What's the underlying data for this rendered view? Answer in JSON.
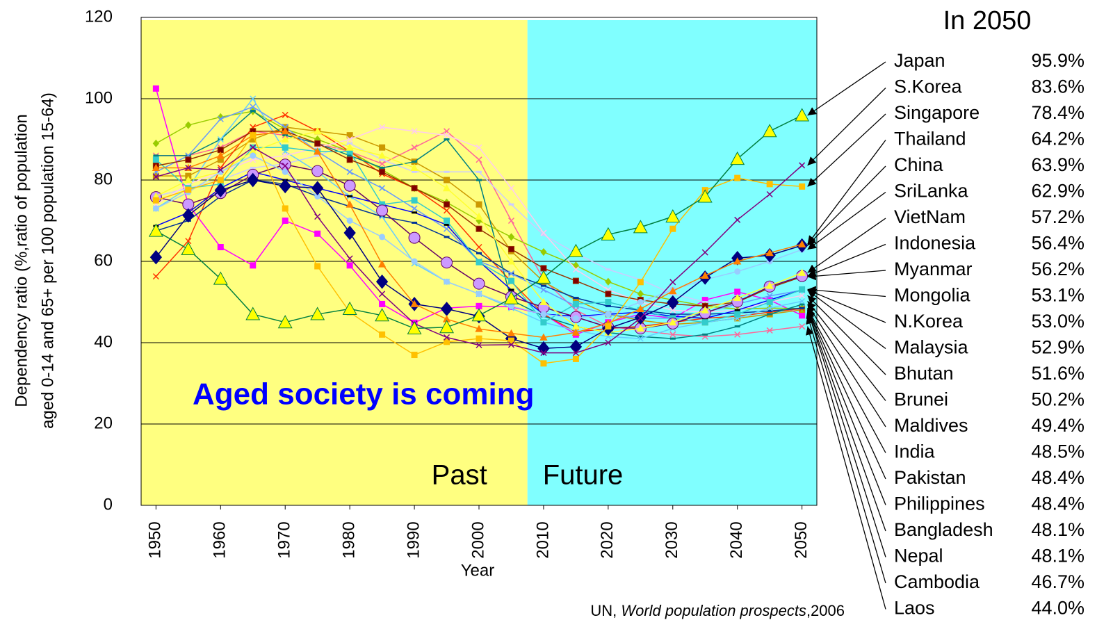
{
  "chart_data": {
    "type": "line",
    "ylabel": [
      "Dependency ratio (%,ratio of population",
      "aged 0-14 and 65+ per 100 population 15-64)"
    ],
    "xlabel": "Year",
    "annotation": "Aged society is coming",
    "legend_title": "In 2050",
    "source": {
      "prefix": "UN, ",
      "title": "World population prospects",
      "suffix": ",2006"
    },
    "split_year": 2007.5,
    "regions": [
      {
        "label": "Past",
        "color": "#ffff80"
      },
      {
        "label": "Future",
        "color": "#80ffff"
      }
    ],
    "grid": true,
    "xlim": [
      1947.7,
      2052.3
    ],
    "xticks": [
      1950,
      1960,
      1970,
      1980,
      1990,
      2000,
      2010,
      2020,
      2030,
      2040,
      2050
    ],
    "ylim": [
      0,
      120
    ],
    "yticks": [
      0,
      20,
      40,
      60,
      80,
      100,
      120
    ],
    "x": [
      1950,
      1955,
      1960,
      1965,
      1970,
      1975,
      1980,
      1985,
      1990,
      1995,
      2000,
      2005,
      2010,
      2015,
      2020,
      2025,
      2030,
      2035,
      2040,
      2045,
      2050
    ],
    "series": [
      {
        "name": "Japan",
        "color": "#008040",
        "marker": "triangle",
        "marker_color": "#ffff00",
        "values": [
          67.5,
          63,
          55.7,
          47,
          45,
          47,
          48.3,
          46.7,
          43.5,
          43.8,
          46.7,
          50.9,
          56,
          62.5,
          66.6,
          68.4,
          71,
          75.9,
          85.2,
          92,
          95.9
        ],
        "value_labels": [
          null,
          null,
          null,
          null,
          null,
          null,
          null,
          null,
          null,
          null,
          null,
          null,
          null,
          null,
          null,
          null,
          null,
          null,
          null,
          null,
          "95.9%"
        ]
      },
      {
        "name": "S.Korea",
        "color": "#800080",
        "marker": "x",
        "marker_color": "#800080",
        "values": [
          80.8,
          83,
          82.5,
          88,
          83.5,
          71,
          60.7,
          52,
          44.7,
          41.3,
          39.4,
          39.5,
          37.5,
          37.5,
          40,
          46,
          54.9,
          62.2,
          70.2,
          76.5,
          83.6
        ],
        "value_labels": [
          null,
          null,
          null,
          null,
          null,
          null,
          null,
          null,
          null,
          null,
          null,
          null,
          null,
          null,
          null,
          null,
          null,
          null,
          null,
          null,
          "83.6%"
        ]
      },
      {
        "name": "Singapore",
        "color": "#ffc000",
        "marker": "square",
        "marker_color": "#ffc000",
        "values": [
          75,
          77.6,
          80,
          91,
          73,
          58.8,
          47.5,
          42,
          37,
          40.2,
          41,
          40.5,
          34.9,
          36,
          44,
          54.9,
          68,
          77.5,
          80.5,
          79,
          78.4
        ],
        "value_labels": [
          null,
          null,
          null,
          null,
          null,
          null,
          null,
          null,
          null,
          null,
          null,
          null,
          null,
          null,
          null,
          null,
          null,
          null,
          null,
          null,
          "78.4%"
        ]
      },
      {
        "name": "Thailand",
        "color": "#ff8000",
        "marker": "triangle",
        "marker_color": "#ff8000",
        "values": [
          83,
          83,
          86,
          91,
          92,
          87,
          74,
          59.3,
          49.5,
          45.8,
          43.4,
          42.3,
          41.3,
          42.5,
          44.8,
          48.3,
          52.7,
          56.5,
          60,
          62.1,
          64.2
        ],
        "value_labels": [
          null,
          null,
          null,
          null,
          null,
          null,
          null,
          null,
          null,
          null,
          null,
          null,
          null,
          null,
          null,
          null,
          null,
          null,
          null,
          null,
          "64.2%"
        ]
      },
      {
        "name": "China",
        "color": "#000080",
        "marker": "diamond",
        "marker_color": "#000080",
        "values": [
          61,
          71.3,
          77.5,
          80,
          78.5,
          78,
          67,
          55,
          49.5,
          48.3,
          46.5,
          41,
          38.6,
          39,
          43.5,
          46.2,
          49.9,
          56,
          60.8,
          61.5,
          63.9
        ],
        "value_labels": [
          null,
          null,
          null,
          null,
          null,
          null,
          null,
          null,
          null,
          null,
          null,
          null,
          null,
          null,
          null,
          null,
          null,
          null,
          null,
          null,
          "63.9%"
        ]
      },
      {
        "name": "SriLanka",
        "color": "#99ccff",
        "marker": "circle",
        "marker_color": "#99ccff",
        "values": [
          73,
          77,
          82,
          86,
          82,
          76,
          70,
          66,
          60,
          55,
          52,
          49,
          47,
          46,
          47,
          50,
          53,
          55.5,
          57.5,
          60,
          62.9
        ],
        "value_labels": [
          null,
          null,
          null,
          null,
          null,
          null,
          null,
          null,
          null,
          null,
          null,
          null,
          null,
          null,
          null,
          null,
          null,
          null,
          null,
          null,
          "62.9%"
        ]
      },
      {
        "name": "VietNam",
        "color": "#ffff33",
        "marker": "triangle",
        "marker_color": "#ffff33",
        "values": [
          76,
          80,
          82,
          87,
          90,
          92,
          88,
          86,
          83,
          78,
          71,
          60,
          50,
          44,
          42.5,
          43.5,
          45,
          48,
          51,
          54,
          57.2
        ],
        "value_labels": [
          null,
          null,
          null,
          null,
          null,
          null,
          null,
          null,
          null,
          null,
          null,
          null,
          null,
          null,
          null,
          null,
          null,
          null,
          null,
          null,
          "57.2%"
        ]
      },
      {
        "name": "Indonesia",
        "color": "#660066",
        "marker": "circle",
        "marker_color": "#cc99ff",
        "values": [
          75.8,
          74,
          76.8,
          81.3,
          83.8,
          82.2,
          78.6,
          72.5,
          65.8,
          59.7,
          54.5,
          51.3,
          48.7,
          46.3,
          43.8,
          43.5,
          44.7,
          47.3,
          50.1,
          53.8,
          56.4
        ],
        "value_labels": [
          null,
          null,
          null,
          null,
          null,
          null,
          null,
          null,
          null,
          null,
          null,
          null,
          null,
          null,
          null,
          null,
          null,
          null,
          null,
          null,
          "56.4%"
        ]
      },
      {
        "name": "Myanmar",
        "color": "#993300",
        "marker": "square",
        "marker_color": "#800000",
        "values": [
          83.5,
          85,
          87.4,
          92,
          92,
          89,
          85,
          82,
          78,
          74,
          68,
          63,
          58.3,
          55.2,
          52,
          50.5,
          49.5,
          49,
          50,
          53.5,
          56.2
        ],
        "value_labels": [
          null,
          null,
          null,
          null,
          null,
          null,
          null,
          null,
          null,
          null,
          null,
          null,
          null,
          null,
          null,
          null,
          null,
          null,
          null,
          null,
          "56.2%"
        ]
      },
      {
        "name": "Mongolia",
        "color": "#33cccc",
        "marker": "square",
        "marker_color": "#33cccc",
        "values": [
          85,
          78,
          79,
          88,
          88,
          87,
          87,
          74,
          75,
          70,
          59.8,
          55.2,
          45,
          49.5,
          50,
          48,
          46,
          45,
          47,
          50,
          53.1
        ],
        "value_labels": [
          null,
          null,
          null,
          null,
          null,
          null,
          null,
          null,
          null,
          null,
          null,
          null,
          null,
          null,
          null,
          null,
          null,
          null,
          null,
          null,
          "53.1%"
        ]
      },
      {
        "name": "N.Korea",
        "color": "#0000ff",
        "marker": "dash",
        "marker_color": "#000000",
        "values": [
          68.7,
          72,
          78,
          82,
          80,
          78,
          76,
          74,
          72,
          69,
          60,
          53,
          47,
          46.5,
          47,
          47.5,
          46.5,
          46,
          48,
          50.5,
          53
        ],
        "value_labels": [
          null,
          null,
          null,
          null,
          null,
          null,
          null,
          null,
          null,
          null,
          null,
          null,
          null,
          null,
          null,
          null,
          null,
          null,
          null,
          null,
          "53.0%"
        ]
      },
      {
        "name": "Malaysia",
        "color": "#6699ff",
        "marker": "x",
        "marker_color": "#6699ff",
        "values": [
          82,
          86,
          95,
          98,
          93,
          87,
          82,
          78,
          73,
          68,
          60,
          57,
          53,
          49,
          47,
          46,
          46,
          47.5,
          49.5,
          51.5,
          52.9
        ],
        "value_labels": [
          null,
          null,
          null,
          null,
          null,
          null,
          null,
          null,
          null,
          null,
          null,
          null,
          null,
          null,
          null,
          null,
          null,
          null,
          null,
          null,
          "52.9%"
        ]
      },
      {
        "name": "Bhutan",
        "color": "#ffccee",
        "marker": "x",
        "marker_color": "#ffccee",
        "values": [
          74,
          79,
          82,
          85,
          86,
          88,
          90,
          93,
          92,
          91,
          88,
          78,
          67,
          58,
          53,
          50,
          48,
          47.5,
          48,
          50,
          51.6
        ],
        "value_labels": [
          null,
          null,
          null,
          null,
          null,
          null,
          null,
          null,
          null,
          null,
          null,
          null,
          null,
          null,
          null,
          null,
          null,
          null,
          null,
          null,
          "51.6%"
        ]
      },
      {
        "name": "Brunei",
        "color": "#66ccff",
        "marker": "x",
        "marker_color": "#66ccff",
        "values": [
          73,
          78,
          90,
          100,
          87,
          82,
          76,
          71,
          59.5,
          55,
          52,
          48.5,
          45,
          43,
          41.5,
          41,
          43.5,
          45,
          46,
          48.5,
          50.2
        ],
        "value_labels": [
          null,
          null,
          null,
          null,
          null,
          null,
          null,
          null,
          null,
          null,
          null,
          null,
          null,
          null,
          null,
          null,
          null,
          null,
          null,
          null,
          "50.2%"
        ]
      },
      {
        "name": "Maldives",
        "color": "#008080",
        "marker": "dash",
        "marker_color": "#008080",
        "values": [
          86,
          86,
          90,
          97,
          91,
          89,
          86,
          83,
          84.5,
          90,
          80,
          50.5,
          46.5,
          44,
          42.5,
          41.5,
          41,
          42,
          44,
          47,
          49.4
        ],
        "value_labels": [
          null,
          null,
          null,
          null,
          null,
          null,
          null,
          null,
          null,
          null,
          null,
          null,
          null,
          null,
          null,
          null,
          null,
          null,
          null,
          null,
          "49.4%"
        ]
      },
      {
        "name": "India",
        "color": "#003399",
        "marker": "dash",
        "marker_color": "#003399",
        "values": [
          67.5,
          70,
          76,
          80,
          79,
          76,
          73.5,
          71,
          69.5,
          66,
          62,
          57,
          54,
          51,
          49,
          48,
          47,
          47,
          47.3,
          47.8,
          48.5
        ],
        "value_labels": [
          null,
          null,
          null,
          null,
          null,
          null,
          null,
          null,
          null,
          null,
          null,
          null,
          null,
          null,
          null,
          null,
          null,
          null,
          null,
          null,
          "48.5%"
        ]
      },
      {
        "name": "Pakistan",
        "color": "#ff3300",
        "marker": "x",
        "marker_color": "#ff3300",
        "values": [
          56.3,
          65,
          83,
          93,
          96,
          92,
          87,
          81.5,
          78,
          72.5,
          63.5,
          55,
          47,
          42.6,
          43.5,
          44,
          45,
          46,
          46.5,
          47.5,
          48.4
        ],
        "value_labels": [
          null,
          null,
          null,
          null,
          null,
          null,
          null,
          null,
          null,
          null,
          null,
          null,
          null,
          null,
          null,
          null,
          null,
          null,
          null,
          null,
          "48.4%"
        ]
      },
      {
        "name": "Philippines",
        "color": "#99cc00",
        "marker": "diamond",
        "marker_color": "#99cc00",
        "values": [
          89,
          93.5,
          95.5,
          96.9,
          92.5,
          90,
          87,
          82.5,
          78,
          74.5,
          70,
          66,
          62.3,
          59,
          55,
          52,
          50.5,
          49,
          48.3,
          48.5,
          48.4
        ],
        "value_labels": [
          null,
          null,
          null,
          null,
          null,
          null,
          null,
          null,
          null,
          null,
          null,
          null,
          null,
          null,
          null,
          null,
          null,
          null,
          null,
          null,
          "48.4%"
        ]
      },
      {
        "name": "Bangladesh",
        "color": "#cc9900",
        "marker": "square",
        "marker_color": "#cc9900",
        "values": [
          81,
          81,
          85,
          90,
          93,
          92,
          91,
          88,
          84.5,
          80,
          74,
          62.5,
          55,
          50.5,
          47,
          45.5,
          44.5,
          45,
          46,
          47,
          48.1
        ],
        "value_labels": [
          null,
          null,
          null,
          null,
          null,
          null,
          null,
          null,
          null,
          null,
          null,
          null,
          null,
          null,
          null,
          null,
          null,
          null,
          null,
          null,
          "48.1%"
        ]
      },
      {
        "name": "Nepal",
        "color": "#ccccff",
        "marker": "dash",
        "marker_color": "#ccccff",
        "values": [
          76,
          78,
          80,
          83,
          84,
          86,
          89,
          85,
          82,
          82,
          82,
          74,
          66.5,
          62,
          58,
          55.5,
          52,
          50,
          49,
          48,
          48.1
        ],
        "value_labels": [
          null,
          null,
          null,
          null,
          null,
          null,
          null,
          null,
          null,
          null,
          null,
          null,
          null,
          null,
          null,
          null,
          null,
          null,
          null,
          null,
          "48.1%"
        ]
      },
      {
        "name": "Cambodia",
        "color": "#ff00ff",
        "marker": "square",
        "marker_color": "#ff00ff",
        "values": [
          102.5,
          74,
          63.5,
          59,
          70,
          66.8,
          59,
          49.5,
          44.9,
          48.5,
          49,
          48.8,
          47,
          42,
          45,
          47,
          46,
          50.5,
          52.5,
          50.5,
          46.7
        ],
        "value_labels": [
          null,
          null,
          null,
          null,
          null,
          null,
          null,
          null,
          null,
          null,
          null,
          null,
          null,
          null,
          null,
          null,
          null,
          null,
          null,
          null,
          "46.7%"
        ]
      },
      {
        "name": "Laos",
        "color": "#ff6699",
        "marker": "x",
        "marker_color": "#ff6699",
        "values": [
          86,
          86,
          88,
          92,
          91,
          89,
          87,
          84,
          88,
          92,
          85,
          70,
          55.5,
          48,
          44,
          43,
          42,
          41.5,
          42,
          43,
          44
        ],
        "value_labels": [
          null,
          null,
          null,
          null,
          null,
          null,
          null,
          null,
          null,
          null,
          null,
          null,
          null,
          null,
          null,
          null,
          null,
          null,
          null,
          null,
          "44.0%"
        ]
      }
    ]
  }
}
